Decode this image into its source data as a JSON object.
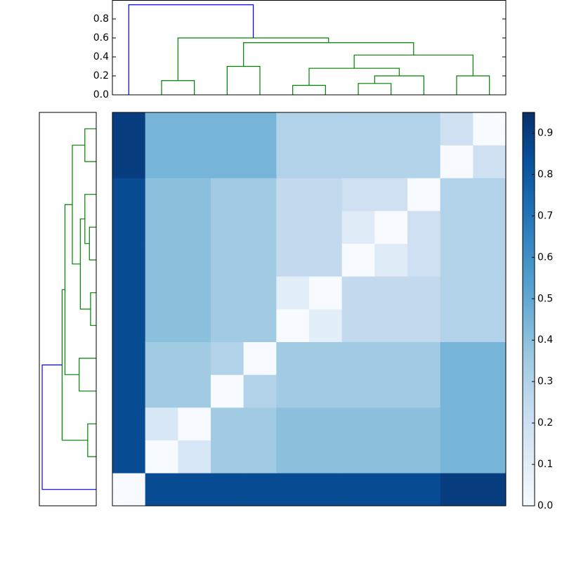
{
  "chart_data": [
    {
      "type": "dendrogram",
      "merges": [
        {
          "left": 1,
          "right": 2,
          "height": 0.15,
          "color": "#008000"
        },
        {
          "left": 3,
          "right": 4,
          "height": 0.3,
          "color": "#008000"
        },
        {
          "left": 5,
          "right": 6,
          "height": 0.1,
          "color": "#008000"
        },
        {
          "left": 7,
          "right": 8,
          "height": 0.12,
          "color": "#008000"
        },
        {
          "left": 15,
          "right": 9,
          "height": 0.2,
          "color": "#008000"
        },
        {
          "left": 14,
          "right": 16,
          "height": 0.28,
          "color": "#008000"
        },
        {
          "left": 10,
          "right": 11,
          "height": 0.2,
          "color": "#008000"
        },
        {
          "left": 17,
          "right": 18,
          "height": 0.42,
          "color": "#008000"
        },
        {
          "left": 13,
          "right": 19,
          "height": 0.55,
          "color": "#008000"
        },
        {
          "left": 12,
          "right": 20,
          "height": 0.6,
          "color": "#008000"
        },
        {
          "left": 0,
          "right": 21,
          "height": 0.95,
          "color": "#0000ff"
        }
      ],
      "ylim": [
        0,
        1
      ],
      "yticks": [
        {
          "value": 0,
          "label": "0.0"
        },
        {
          "value": 0.2,
          "label": "0.2"
        },
        {
          "value": 0.4,
          "label": "0.4"
        },
        {
          "value": 0.6,
          "label": "0.6"
        },
        {
          "value": 0.8,
          "label": "0.8"
        }
      ]
    },
    {
      "type": "heatmap",
      "colormap": "Blues",
      "matrix": [
        [
          0,
          0.85,
          0.85,
          0.85,
          0.85,
          0.85,
          0.85,
          0.85,
          0.85,
          0.85,
          0.9,
          0.9
        ],
        [
          0.85,
          0,
          0.15,
          0.35,
          0.35,
          0.4,
          0.4,
          0.4,
          0.4,
          0.4,
          0.45,
          0.45
        ],
        [
          0.85,
          0.15,
          0,
          0.35,
          0.35,
          0.4,
          0.4,
          0.4,
          0.4,
          0.4,
          0.45,
          0.45
        ],
        [
          0.85,
          0.35,
          0.35,
          0,
          0.3,
          0.35,
          0.35,
          0.35,
          0.35,
          0.35,
          0.45,
          0.45
        ],
        [
          0.85,
          0.35,
          0.35,
          0.3,
          0,
          0.35,
          0.35,
          0.35,
          0.35,
          0.35,
          0.45,
          0.45
        ],
        [
          0.85,
          0.4,
          0.4,
          0.35,
          0.35,
          0,
          0.1,
          0.25,
          0.25,
          0.25,
          0.3,
          0.3
        ],
        [
          0.85,
          0.4,
          0.4,
          0.35,
          0.35,
          0.1,
          0,
          0.25,
          0.25,
          0.25,
          0.3,
          0.3
        ],
        [
          0.85,
          0.4,
          0.4,
          0.35,
          0.35,
          0.25,
          0.25,
          0,
          0.12,
          0.2,
          0.3,
          0.3
        ],
        [
          0.85,
          0.4,
          0.4,
          0.35,
          0.35,
          0.25,
          0.25,
          0.12,
          0,
          0.2,
          0.3,
          0.3
        ],
        [
          0.85,
          0.4,
          0.4,
          0.35,
          0.35,
          0.25,
          0.25,
          0.2,
          0.2,
          0,
          0.3,
          0.3
        ],
        [
          0.9,
          0.45,
          0.45,
          0.45,
          0.45,
          0.3,
          0.3,
          0.3,
          0.3,
          0.3,
          0,
          0.2
        ],
        [
          0.9,
          0.45,
          0.45,
          0.45,
          0.45,
          0.3,
          0.3,
          0.3,
          0.3,
          0.3,
          0.2,
          0
        ]
      ],
      "clim": [
        0,
        0.95
      ],
      "cticks": [
        {
          "value": 0,
          "label": "0.0"
        },
        {
          "value": 0.1,
          "label": "0.1"
        },
        {
          "value": 0.2,
          "label": "0.2"
        },
        {
          "value": 0.3,
          "label": "0.3"
        },
        {
          "value": 0.4,
          "label": "0.4"
        },
        {
          "value": 0.5,
          "label": "0.5"
        },
        {
          "value": 0.6,
          "label": "0.6"
        },
        {
          "value": 0.7,
          "label": "0.7"
        },
        {
          "value": 0.8,
          "label": "0.8"
        },
        {
          "value": 0.9,
          "label": "0.9"
        }
      ]
    }
  ]
}
